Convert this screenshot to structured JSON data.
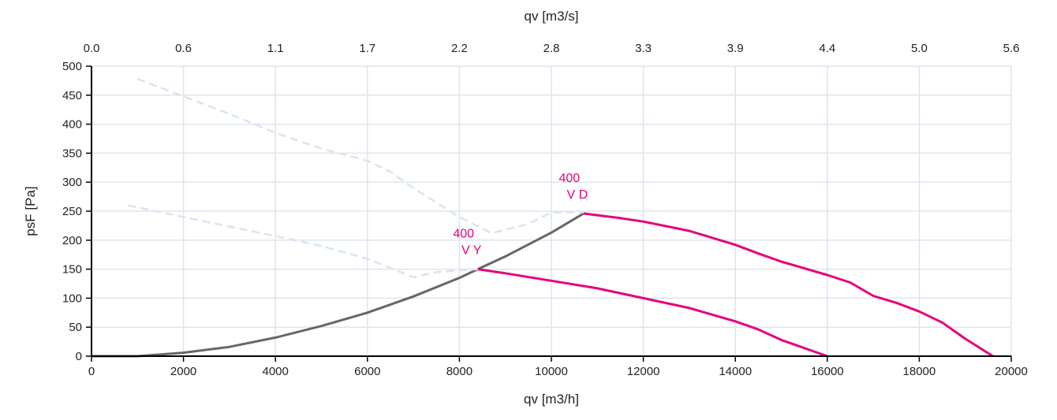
{
  "chart_data": {
    "type": "line",
    "xlabel": "qv [m3/h]",
    "x2label": "qv [m3/s]",
    "ylabel": "psF [Pa]",
    "xlim": [
      0,
      20000
    ],
    "ylim": [
      0,
      500
    ],
    "grid": true,
    "x_ticks": [
      0,
      2000,
      4000,
      6000,
      8000,
      10000,
      12000,
      14000,
      16000,
      18000,
      20000
    ],
    "x2_tick_labels": [
      "0.0",
      "0.6",
      "1.1",
      "1.7",
      "2.2",
      "2.8",
      "3.3",
      "3.9",
      "4.4",
      "5.0",
      "5.6"
    ],
    "y_ticks": [
      0,
      50,
      100,
      150,
      200,
      250,
      300,
      350,
      400,
      450,
      500
    ],
    "colors": {
      "fan": "#e6007e",
      "system": "#666666",
      "limit": "#dbe3ee",
      "grid": "#dde5ef"
    },
    "series": [
      {
        "name": "system-curve",
        "style": "solid",
        "color": "#666666",
        "x": [
          0,
          1000,
          2000,
          3000,
          4000,
          5000,
          6000,
          7000,
          8000,
          8400,
          9000,
          10000,
          10700
        ],
        "y": [
          0,
          0,
          6,
          16,
          32,
          52,
          75,
          103,
          135,
          150,
          172,
          213,
          246
        ]
      },
      {
        "name": "400 V Y",
        "style": "solid",
        "color": "#e6007e",
        "x": [
          8400,
          9000,
          10000,
          11000,
          12000,
          13000,
          14000,
          14500,
          15000,
          16000
        ],
        "y": [
          150,
          143,
          130,
          117,
          100,
          83,
          60,
          46,
          28,
          0
        ]
      },
      {
        "name": "400 V D",
        "style": "solid",
        "color": "#e6007e",
        "x": [
          10700,
          11500,
          12000,
          13000,
          14000,
          14500,
          15000,
          16000,
          16500,
          17000,
          17500,
          18000,
          18500,
          19000,
          19600
        ],
        "y": [
          246,
          238,
          232,
          216,
          192,
          177,
          163,
          140,
          127,
          104,
          92,
          77,
          58,
          30,
          0
        ]
      },
      {
        "name": "limit-upper",
        "style": "dashed",
        "color": "#dbe3ee",
        "x": [
          1000,
          2000,
          3000,
          4000,
          5000,
          6000,
          6500,
          7000,
          8000,
          8700,
          9500,
          10000,
          10700
        ],
        "y": [
          478,
          448,
          418,
          385,
          358,
          337,
          318,
          290,
          240,
          212,
          228,
          248,
          248
        ]
      },
      {
        "name": "limit-lower",
        "style": "dashed",
        "color": "#dbe3ee",
        "x": [
          800,
          2000,
          4000,
          5000,
          6000,
          7000,
          7500,
          8400
        ],
        "y": [
          260,
          240,
          207,
          190,
          168,
          136,
          145,
          150
        ]
      }
    ],
    "annotations": [
      {
        "line1": "400",
        "line2": "V Y",
        "x": 8400,
        "y": 150
      },
      {
        "line1": "400",
        "line2": "V D",
        "x": 10700,
        "y": 246
      }
    ]
  }
}
